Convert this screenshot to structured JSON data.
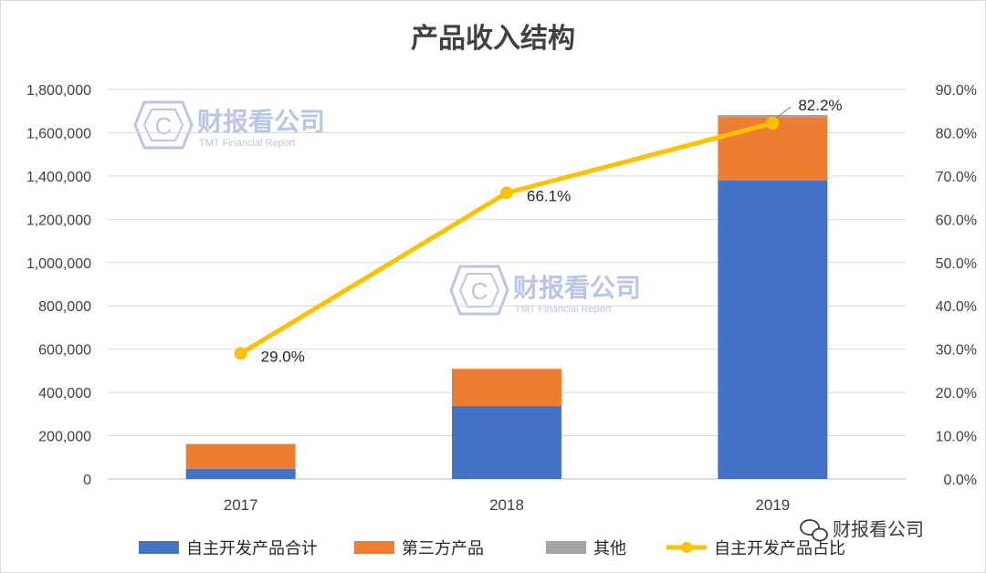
{
  "chart_data": {
    "type": "bar",
    "stacked": true,
    "title": "产品收入结构",
    "categories": [
      "2017",
      "2018",
      "2019"
    ],
    "series": [
      {
        "name": "自主开发产品合计",
        "type": "bar",
        "axis": "left",
        "color": "#4472c4",
        "values": [
          47000,
          337000,
          1380000
        ]
      },
      {
        "name": "第三方产品",
        "type": "bar",
        "axis": "left",
        "color": "#ed7d31",
        "values": [
          115000,
          172000,
          292000
        ]
      },
      {
        "name": "其他",
        "type": "bar",
        "axis": "left",
        "color": "#a5a5a5",
        "values": [
          0,
          0,
          10000
        ]
      },
      {
        "name": "自主开发产品占比",
        "type": "line",
        "axis": "right",
        "color": "#ffc000",
        "values": [
          29.0,
          66.1,
          82.2
        ],
        "labels": [
          "29.0%",
          "66.1%",
          "82.2%"
        ]
      }
    ],
    "ylim": [
      0,
      1800000
    ],
    "y2lim": [
      0,
      90
    ],
    "yticks": [
      "0",
      "200,000",
      "400,000",
      "600,000",
      "800,000",
      "1,000,000",
      "1,200,000",
      "1,400,000",
      "1,600,000",
      "1,800,000"
    ],
    "y2ticks": [
      "0.0%",
      "10.0%",
      "20.0%",
      "30.0%",
      "40.0%",
      "50.0%",
      "60.0%",
      "70.0%",
      "80.0%",
      "90.0%"
    ],
    "grid": true,
    "legend_position": "bottom"
  },
  "watermark": {
    "text": "财报看公司",
    "sub": "TMT Financial Report",
    "letter": "C"
  },
  "corner_label": {
    "text": "财报看公司"
  }
}
